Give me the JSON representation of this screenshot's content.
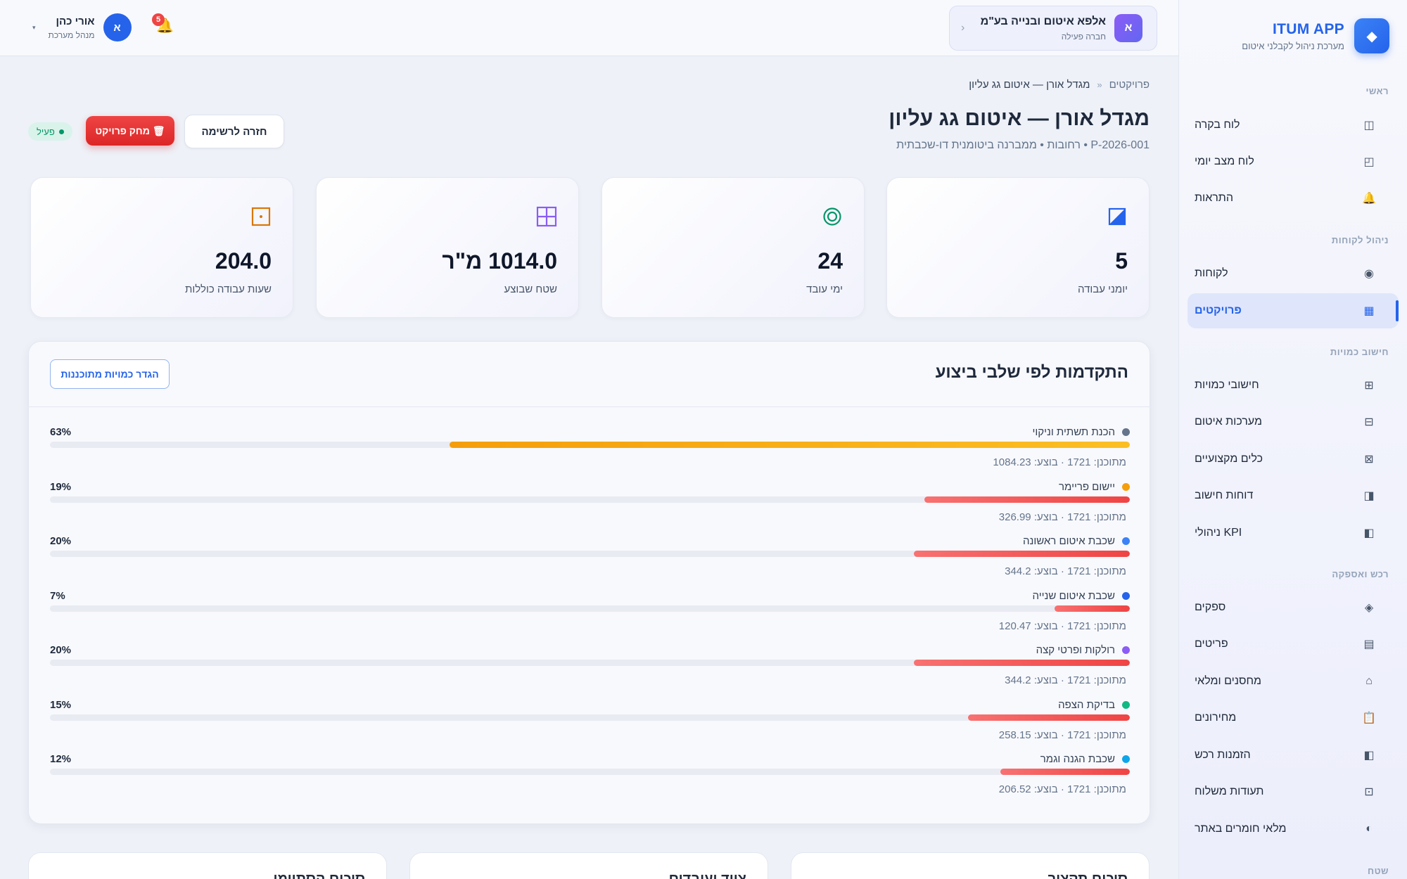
{
  "brand": {
    "name": "ITUM APP",
    "subtitle": "מערכת ניהול לקבלני איטום",
    "logo": "◆"
  },
  "sidebar": {
    "sections": [
      {
        "label": "ראשי"
      },
      {
        "label": "ניהול לקוחות"
      },
      {
        "label": "חישוב כמויות"
      },
      {
        "label": "רכש ואספקה"
      },
      {
        "label": "שטח"
      }
    ],
    "items": [
      {
        "label": "לוח בקרה",
        "icon": "◫"
      },
      {
        "label": "לוח מצב יומי",
        "icon": "◰"
      },
      {
        "label": "התראות",
        "icon": "🔔"
      },
      {
        "label": "לקוחות",
        "icon": "◉"
      },
      {
        "label": "פרויקטים",
        "icon": "▦"
      },
      {
        "label": "חישובי כמויות",
        "icon": "⊞"
      },
      {
        "label": "מערכות איטום",
        "icon": "⊟"
      },
      {
        "label": "כלים מקצועיים",
        "icon": "⊠"
      },
      {
        "label": "דוחות חישוב",
        "icon": "◨"
      },
      {
        "label": "KPI ניהולי",
        "icon": "◧"
      },
      {
        "label": "ספקים",
        "icon": "◈"
      },
      {
        "label": "פריטים",
        "icon": "▤"
      },
      {
        "label": "מחסנים ומלאי",
        "icon": "⌂"
      },
      {
        "label": "מחירונים",
        "icon": "📋"
      },
      {
        "label": "הזמנות רכש",
        "icon": "◧"
      },
      {
        "label": "תעודות משלוח",
        "icon": "⊡"
      },
      {
        "label": "מלאי חומרים באתר",
        "icon": "◐"
      }
    ]
  },
  "topbar": {
    "company_name": "אלפא איטום ובנייה בע\"מ",
    "company_sub": "חברה פעילה",
    "company_initial": "א",
    "company_chevron": "‹",
    "notifications_count": "5",
    "bell": "🔔",
    "user_name": "אורי כהן",
    "user_role": "מנהל מערכת",
    "user_initial": "א",
    "user_caret": "▾"
  },
  "breadcrumb": {
    "root": "פרויקטים",
    "sep": "«",
    "current": "מגדל אורן — איטום גג עליון"
  },
  "page": {
    "title": "מגדל אורן — איטום גג עליון",
    "subtitle": "P-2026-001 • רחובות • ממברנה ביטומנית דו-שכבתית",
    "back_label": "חזרה לרשימה",
    "delete_label": "🗑 מחק פרויקט",
    "status_label": "פעיל"
  },
  "kpis": [
    {
      "value": "5",
      "label": "יומני עבודה",
      "icon": "journal-icon",
      "color": "#2563eb"
    },
    {
      "value": "24",
      "label": "ימי עובד",
      "icon": "target-icon",
      "color": "#059669"
    },
    {
      "value": "1014.0 מ\"ר",
      "label": "שטח שבוצע",
      "icon": "grid-icon",
      "color": "#8b5cf6"
    },
    {
      "value": "204.0",
      "label": "שעות עבודה כוללות",
      "icon": "clock-square-icon",
      "color": "#d97706"
    }
  ],
  "progress": {
    "title": "התקדמות לפי שלבי ביצוע",
    "button_label": "הגדר כמויות מתוכננות",
    "stages": [
      {
        "name": "הכנת תשתית וניקוי",
        "pct_label": "63%",
        "pct": 0.63,
        "meta": "מתוכנן: 1721 · בוצע: 1084.23",
        "color": "#64748b"
      },
      {
        "name": "יישום פריימר",
        "pct_label": "19%",
        "pct": 0.19,
        "meta": "מתוכנן: 1721 · בוצע: 326.99",
        "color": "#f59e0b"
      },
      {
        "name": "שכבת איטום ראשונה",
        "pct_label": "20%",
        "pct": 0.2,
        "meta": "מתוכנן: 1721 · בוצע: 344.2",
        "color": "#3b82f6"
      },
      {
        "name": "שכבת איטום שנייה",
        "pct_label": "7%",
        "pct": 0.07,
        "meta": "מתוכנן: 1721 · בוצע: 120.47",
        "color": "#2563eb"
      },
      {
        "name": "רולקות ופרטי קצה",
        "pct_label": "20%",
        "pct": 0.2,
        "meta": "מתוכנן: 1721 · בוצע: 344.2",
        "color": "#8b5cf6"
      },
      {
        "name": "בדיקת הצפה",
        "pct_label": "15%",
        "pct": 0.15,
        "meta": "מתוכנן: 1721 · בוצע: 258.15",
        "color": "#10b981"
      },
      {
        "name": "שכבת הגנה וגמר",
        "pct_label": "12%",
        "pct": 0.12,
        "meta": "מתוכנן: 1721 · בוצע: 206.52",
        "color": "#0ea5e9"
      }
    ]
  },
  "bottom_cards": [
    {
      "title": "סיכום תקציב"
    },
    {
      "title": "ציוד ועובדים"
    },
    {
      "title": "סיכום הסתיימו"
    }
  ]
}
